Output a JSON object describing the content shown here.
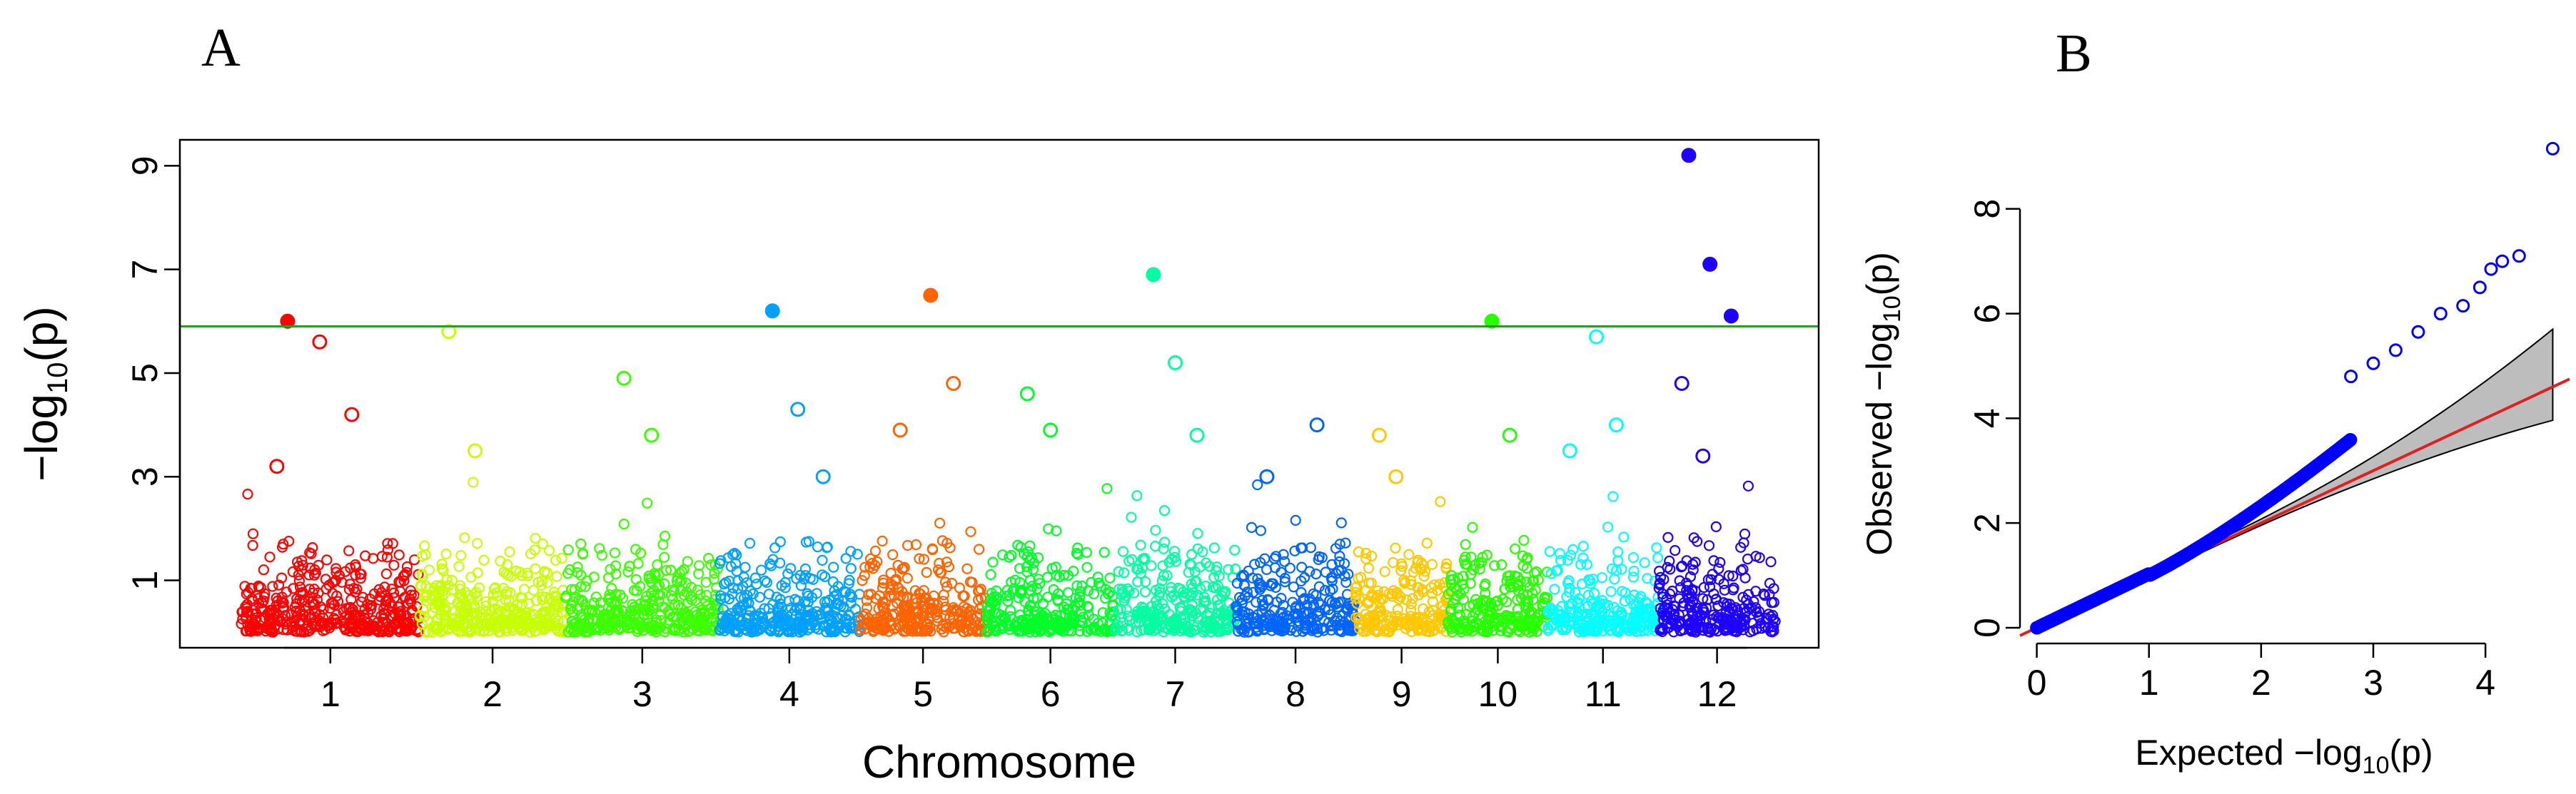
{
  "chart_data": [
    {
      "panel_label": "A",
      "type": "scatter",
      "subtype": "manhattan",
      "xlabel": "Chromosome",
      "ylabel_main": "−log",
      "ylabel_sub": "10",
      "ylabel_rest": "(p)",
      "ylim": [
        0,
        9.5
      ],
      "yticks": [
        "1",
        "3",
        "5",
        "7",
        "9"
      ],
      "significance_threshold": 5.9,
      "threshold_color": "#22a022",
      "chromosomes": [
        {
          "label": "1",
          "color": "#ff0000",
          "peaks": [
            3.2,
            4.2,
            5.6,
            6.0
          ]
        },
        {
          "label": "2",
          "color": "#c8ff00",
          "peaks": [
            3.5,
            5.8
          ]
        },
        {
          "label": "3",
          "color": "#3cff00",
          "peaks": [
            3.8,
            4.9
          ]
        },
        {
          "label": "4",
          "color": "#00a0ff",
          "peaks": [
            3.0,
            4.3,
            6.2
          ]
        },
        {
          "label": "5",
          "color": "#ff6400",
          "peaks": [
            3.9,
            4.8,
            6.5
          ]
        },
        {
          "label": "6",
          "color": "#00ff28",
          "peaks": [
            3.9,
            4.6
          ]
        },
        {
          "label": "7",
          "color": "#00ffa0",
          "peaks": [
            3.8,
            5.2,
            6.9
          ]
        },
        {
          "label": "8",
          "color": "#0064ff",
          "peaks": [
            3.0,
            4.0
          ]
        },
        {
          "label": "9",
          "color": "#ffc800",
          "peaks": [
            3.0,
            3.8
          ]
        },
        {
          "label": "10",
          "color": "#28ff00",
          "peaks": [
            3.8,
            6.0
          ]
        },
        {
          "label": "11",
          "color": "#00ffff",
          "peaks": [
            3.5,
            4.0,
            5.7
          ]
        },
        {
          "label": "12",
          "color": "#1e00ff",
          "peaks": [
            3.4,
            4.8,
            6.1,
            7.1,
            9.2
          ]
        }
      ]
    },
    {
      "panel_label": "B",
      "type": "scatter",
      "subtype": "qq",
      "xlabel_main": "Expected  −log",
      "xlabel_sub": "10",
      "xlabel_rest": "(p)",
      "ylabel_main": "Observed  −log",
      "ylabel_sub": "10",
      "ylabel_rest": "(p)",
      "xlim": [
        0,
        4.7
      ],
      "ylim": [
        0,
        9.5
      ],
      "xticks": [
        "0",
        "1",
        "2",
        "3",
        "4"
      ],
      "yticks": [
        "0",
        "2",
        "4",
        "6",
        "8"
      ],
      "point_color": "#0000ff",
      "reference_line_color": "#e02020",
      "confidence_band_color": "#bdbdbd",
      "tail_points": [
        [
          2.8,
          4.8
        ],
        [
          3.0,
          5.05
        ],
        [
          3.2,
          5.3
        ],
        [
          3.4,
          5.65
        ],
        [
          3.6,
          6.0
        ],
        [
          3.8,
          6.15
        ],
        [
          3.95,
          6.5
        ],
        [
          4.05,
          6.85
        ],
        [
          4.15,
          7.0
        ],
        [
          4.3,
          7.1
        ],
        [
          4.6,
          9.15
        ]
      ]
    }
  ]
}
